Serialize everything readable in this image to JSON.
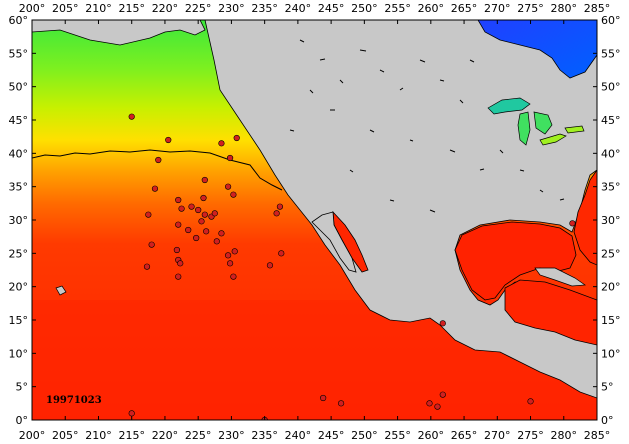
{
  "map": {
    "date_label": "19971023",
    "lon_range": [
      200,
      285
    ],
    "lat_range": [
      0,
      60
    ],
    "lon_ticks": [
      "200°",
      "205°",
      "210°",
      "215°",
      "220°",
      "225°",
      "230°",
      "235°",
      "240°",
      "245°",
      "250°",
      "255°",
      "260°",
      "265°",
      "270°",
      "275°",
      "280°",
      "285°"
    ],
    "lat_ticks": [
      "0°",
      "5°",
      "10°",
      "15°",
      "20°",
      "25°",
      "30°",
      "35°",
      "40°",
      "45°",
      "50°",
      "55°",
      "60°"
    ],
    "colors": {
      "land": "#c8c8c8",
      "coast": "#000000",
      "warm": "#ff2000",
      "cool": "#00ff40",
      "cold": "#0040ff",
      "marker": "#d02020"
    },
    "markers": [
      {
        "lon": 215.0,
        "lat": 45.5
      },
      {
        "lon": 220.5,
        "lat": 42.0
      },
      {
        "lon": 228.5,
        "lat": 41.5
      },
      {
        "lon": 230.8,
        "lat": 42.3
      },
      {
        "lon": 219.0,
        "lat": 39.0
      },
      {
        "lon": 229.8,
        "lat": 39.3
      },
      {
        "lon": 226.0,
        "lat": 36.0
      },
      {
        "lon": 218.5,
        "lat": 34.7
      },
      {
        "lon": 229.5,
        "lat": 35.0
      },
      {
        "lon": 230.3,
        "lat": 33.8
      },
      {
        "lon": 222.0,
        "lat": 33.0
      },
      {
        "lon": 225.8,
        "lat": 33.3
      },
      {
        "lon": 222.5,
        "lat": 31.7
      },
      {
        "lon": 224.0,
        "lat": 32.0
      },
      {
        "lon": 225.0,
        "lat": 31.5
      },
      {
        "lon": 226.0,
        "lat": 30.8
      },
      {
        "lon": 227.0,
        "lat": 30.5
      },
      {
        "lon": 227.5,
        "lat": 31.0
      },
      {
        "lon": 217.5,
        "lat": 30.8
      },
      {
        "lon": 225.5,
        "lat": 29.8
      },
      {
        "lon": 222.0,
        "lat": 29.3
      },
      {
        "lon": 223.5,
        "lat": 28.5
      },
      {
        "lon": 226.2,
        "lat": 28.3
      },
      {
        "lon": 228.5,
        "lat": 28.0
      },
      {
        "lon": 237.3,
        "lat": 32.0
      },
      {
        "lon": 236.8,
        "lat": 31.0
      },
      {
        "lon": 224.7,
        "lat": 27.3
      },
      {
        "lon": 227.8,
        "lat": 26.8
      },
      {
        "lon": 218.0,
        "lat": 26.3
      },
      {
        "lon": 221.8,
        "lat": 25.5
      },
      {
        "lon": 230.5,
        "lat": 25.3
      },
      {
        "lon": 229.5,
        "lat": 24.7
      },
      {
        "lon": 237.5,
        "lat": 25.0
      },
      {
        "lon": 222.0,
        "lat": 24.0
      },
      {
        "lon": 222.3,
        "lat": 23.5
      },
      {
        "lon": 229.8,
        "lat": 23.5
      },
      {
        "lon": 217.3,
        "lat": 23.0
      },
      {
        "lon": 235.8,
        "lat": 23.2
      },
      {
        "lon": 230.3,
        "lat": 21.5
      },
      {
        "lon": 222.0,
        "lat": 21.5
      },
      {
        "lon": 261.8,
        "lat": 14.5
      },
      {
        "lon": 281.3,
        "lat": 29.5
      },
      {
        "lon": 215.0,
        "lat": 1.0
      },
      {
        "lon": 243.8,
        "lat": 3.3
      },
      {
        "lon": 246.5,
        "lat": 2.5
      },
      {
        "lon": 259.8,
        "lat": 2.5
      },
      {
        "lon": 261.0,
        "lat": 2.0
      },
      {
        "lon": 261.8,
        "lat": 3.8
      },
      {
        "lon": 275.0,
        "lat": 2.8
      },
      {
        "lon": 235.0,
        "lat": 0.0
      }
    ]
  }
}
